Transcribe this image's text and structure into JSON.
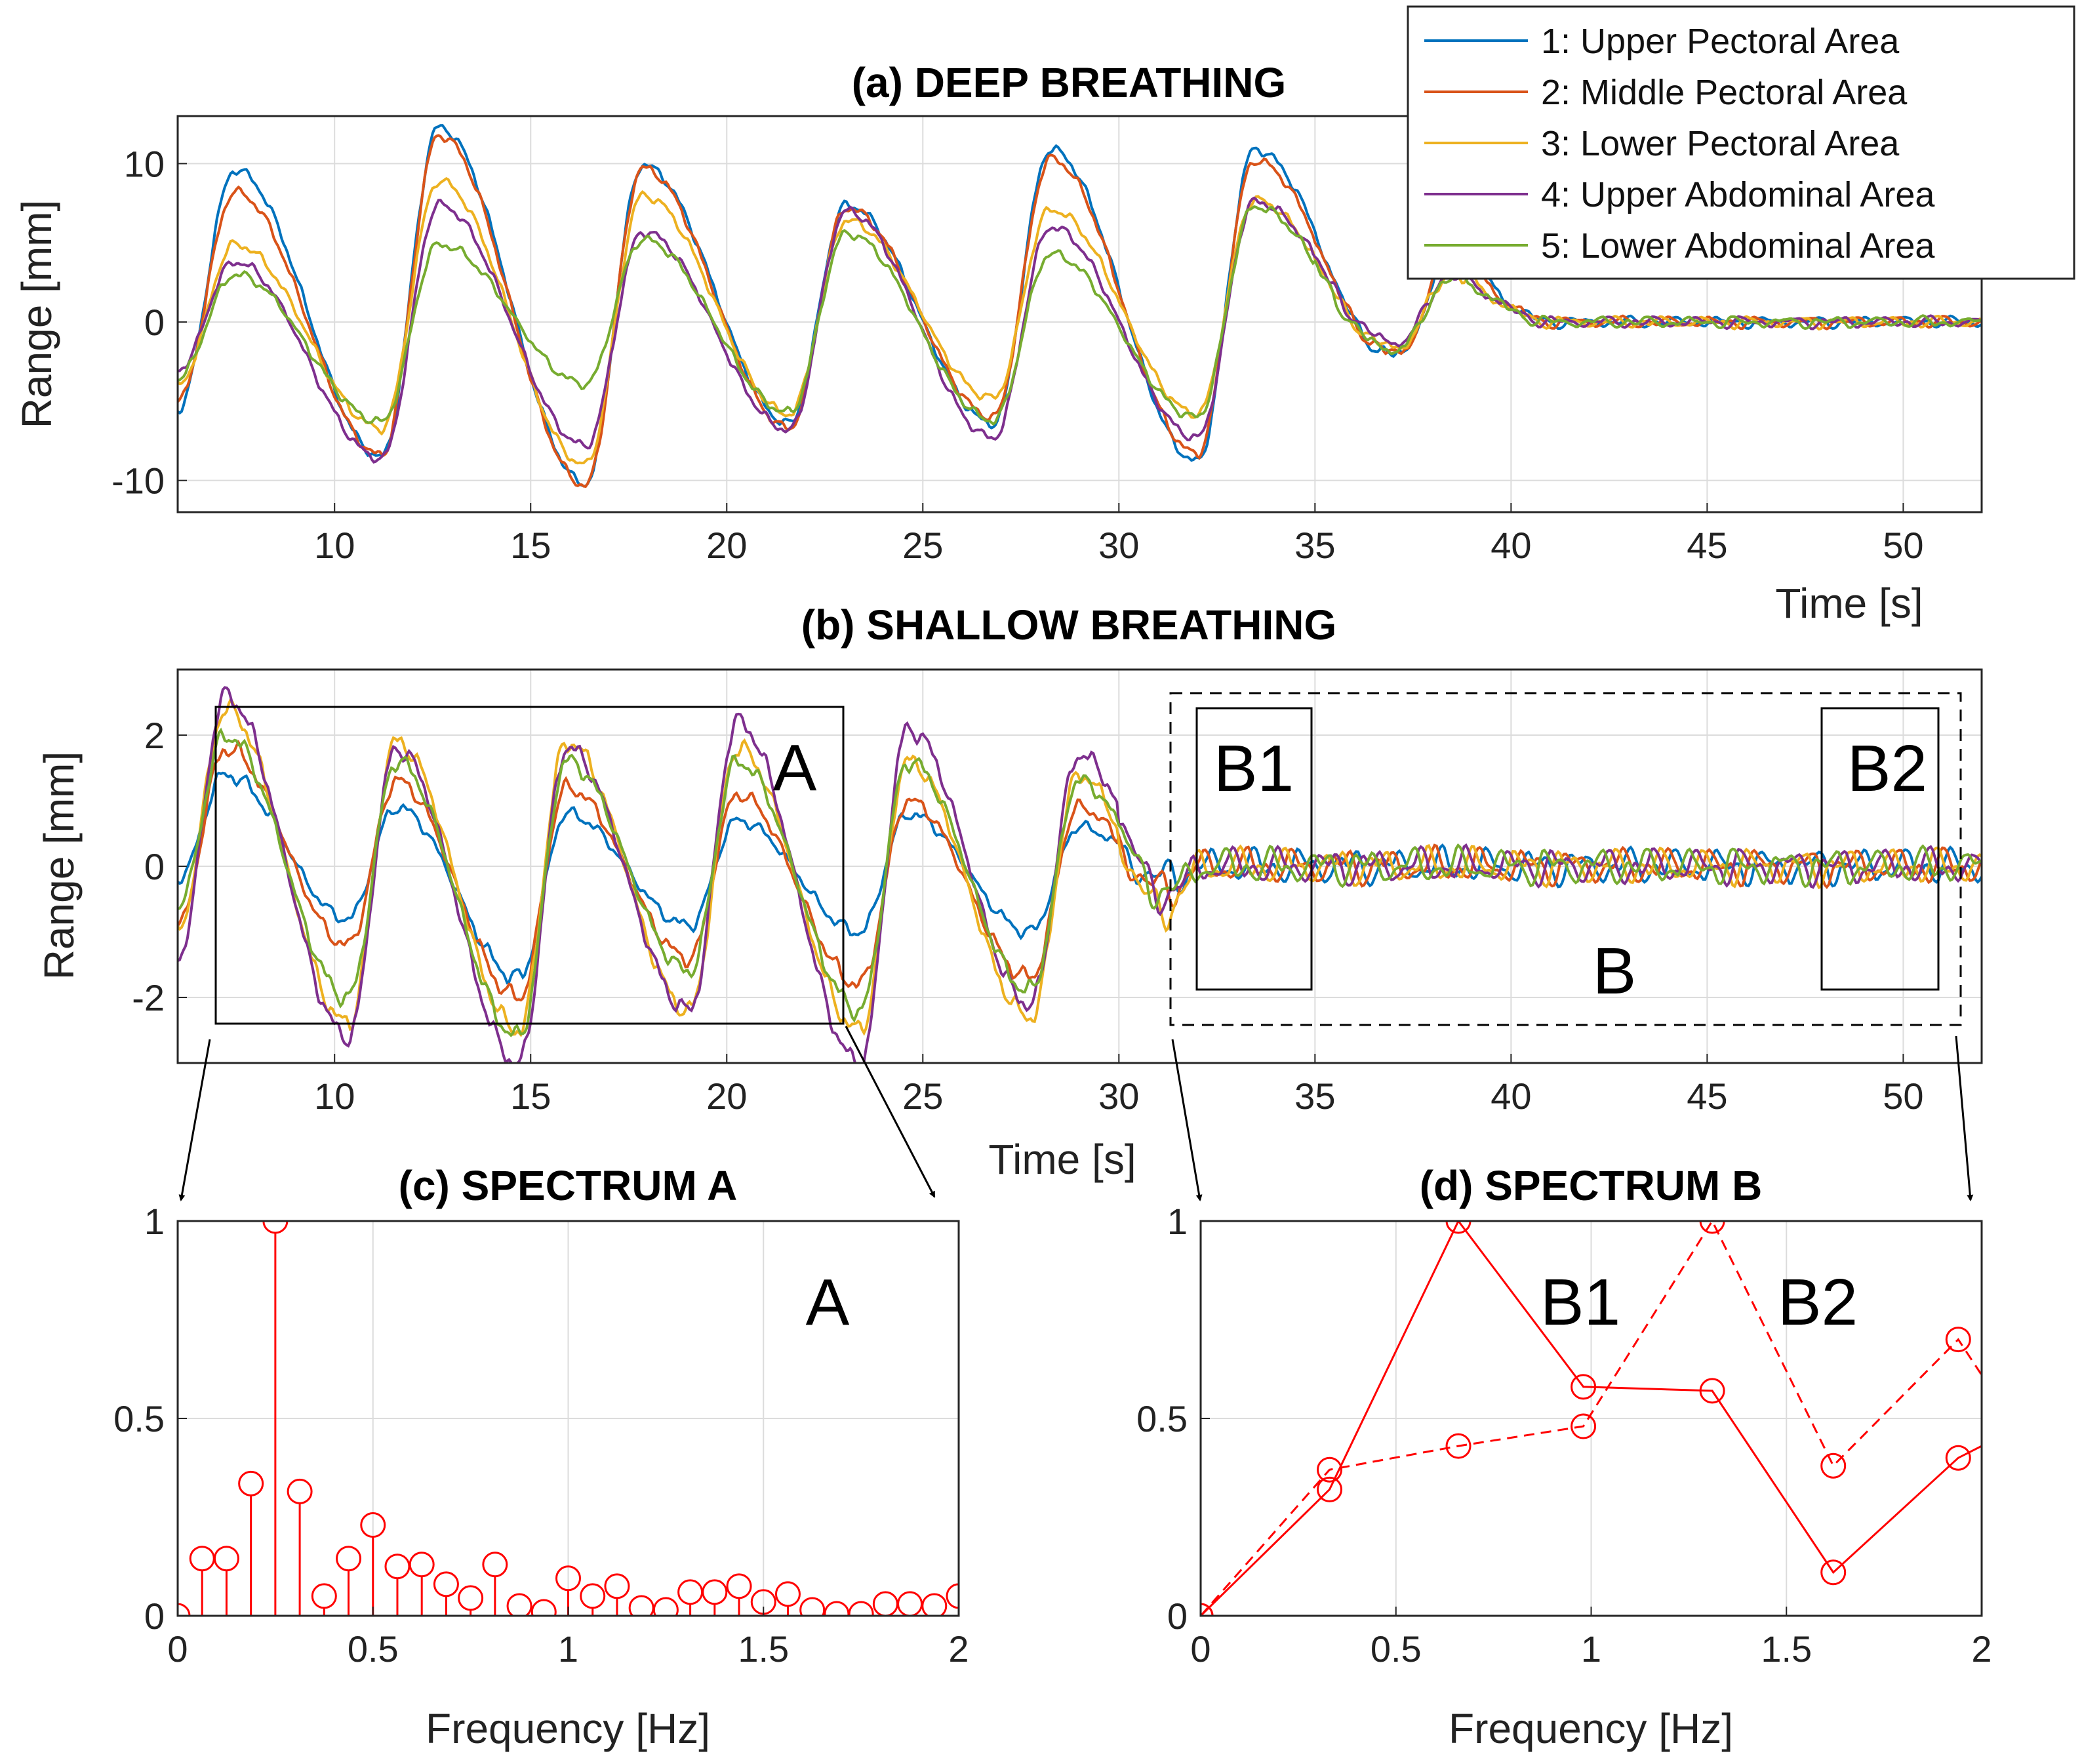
{
  "series_colors": [
    "#0072BD",
    "#D95319",
    "#EDB120",
    "#7E2F8E",
    "#77AC30"
  ],
  "stem_color": "#FF0000",
  "legend": {
    "entries": [
      "1: Upper Pectoral Area",
      "2: Middle Pectoral Area",
      "3: Lower Pectoral Area",
      "4: Upper Abdominal Area",
      "5: Lower Abdominal Area"
    ]
  },
  "chart_data": [
    {
      "id": "deep",
      "type": "line",
      "title": "(a) DEEP BREATHING",
      "xlabel": "Time [s]",
      "ylabel": "Range [mm]",
      "xlim": [
        6,
        52
      ],
      "ylim": [
        -12,
        13
      ],
      "xticks": [
        10,
        15,
        20,
        25,
        30,
        35,
        40,
        45,
        50
      ],
      "yticks": [
        -10,
        0,
        10
      ],
      "phase": {
        "t0": 6,
        "period": 5.2,
        "fade_start": 35,
        "fade_end": 41
      },
      "series": [
        {
          "name": "1: Upper Pectoral Area",
          "peaks": [
            9.6,
            12.3,
            9.9,
            7.4,
            10.9,
            10.9
          ],
          "troughs": [
            -5.5,
            -8.5,
            -10.2,
            -6.4,
            -6.4,
            -8.8,
            -3.2
          ]
        },
        {
          "name": "2: Middle Pectoral Area",
          "peaks": [
            8.2,
            11.8,
            9.7,
            7.2,
            10.3,
            10.2
          ],
          "troughs": [
            -5.0,
            -8.4,
            -10.3,
            -6.7,
            -6.0,
            -8.3,
            -3.0
          ]
        },
        {
          "name": "3: Lower Pectoral Area",
          "peaks": [
            4.9,
            8.9,
            8.0,
            6.4,
            7.1,
            7.7
          ],
          "troughs": [
            -4.0,
            -6.7,
            -9.0,
            -5.8,
            -4.8,
            -5.8,
            -2.4
          ]
        },
        {
          "name": "4: Upper Abdominal Area",
          "peaks": [
            3.8,
            7.4,
            5.7,
            7.0,
            6.0,
            7.6
          ],
          "troughs": [
            -3.0,
            -8.6,
            -7.8,
            -6.8,
            -7.3,
            -7.3,
            -1.9
          ]
        },
        {
          "name": "5: Lower Abdominal Area",
          "peaks": [
            3.0,
            4.9,
            5.2,
            5.6,
            4.3,
            7.3
          ],
          "troughs": [
            -3.5,
            -6.3,
            -3.9,
            -5.7,
            -6.2,
            -6.0,
            -2.6
          ]
        }
      ]
    },
    {
      "id": "shallow",
      "type": "line",
      "title": "(b) SHALLOW BREATHING",
      "xlabel": "Time [s]",
      "ylabel": "Range [mm]",
      "xlim": [
        6,
        52
      ],
      "ylim": [
        -3,
        3
      ],
      "xticks": [
        10,
        15,
        20,
        25,
        30,
        35,
        40,
        45,
        50
      ],
      "yticks": [
        -2,
        0,
        2
      ],
      "phase": {
        "t0": 6,
        "period": 4.35,
        "fade_start": 30,
        "fade_end": 32
      },
      "series": [
        {
          "name": "1: Upper Pectoral Area",
          "peaks": [
            1.4,
            0.9,
            0.8,
            0.7,
            0.8,
            0.6
          ],
          "troughs": [
            -0.2,
            -0.8,
            -1.7,
            -0.9,
            -1.0,
            -1.0,
            -0.7
          ]
        },
        {
          "name": "2: Middle Pectoral Area",
          "peaks": [
            1.8,
            1.3,
            1.2,
            1.1,
            1.0,
            0.9
          ],
          "troughs": [
            -0.9,
            -1.2,
            -2.0,
            -1.4,
            -1.8,
            -1.7,
            -1.3
          ]
        },
        {
          "name": "3: Lower Pectoral Area",
          "peaks": [
            2.4,
            1.9,
            1.9,
            1.8,
            1.6,
            1.4
          ],
          "troughs": [
            -1.0,
            -2.4,
            -2.5,
            -2.2,
            -2.5,
            -2.3,
            -2.3
          ]
        },
        {
          "name": "4: Upper Abdominal Area",
          "peaks": [
            2.6,
            1.8,
            1.8,
            2.2,
            2.1,
            1.7
          ],
          "troughs": [
            -1.4,
            -2.6,
            -3.0,
            -2.2,
            -3.0,
            -2.1,
            -1.7
          ]
        },
        {
          "name": "5: Lower Abdominal Area",
          "peaks": [
            2.0,
            1.6,
            1.6,
            1.6,
            1.6,
            1.3
          ],
          "troughs": [
            -0.6,
            -2.0,
            -2.6,
            -1.6,
            -2.2,
            -1.9,
            -1.5
          ]
        }
      ]
    },
    {
      "id": "specA",
      "type": "stem",
      "title": "(c) SPECTRUM A",
      "xlabel": "Frequency [Hz]",
      "xlim": [
        0,
        2
      ],
      "ylim": [
        0,
        1
      ],
      "xticks": [
        0,
        0.5,
        1,
        1.5,
        2
      ],
      "xtick_labels": [
        "0",
        "0.5",
        "1",
        "1.5",
        "2"
      ],
      "yticks": [
        0,
        0.5,
        1
      ],
      "ytick_labels": [
        "0",
        "0.5",
        "1"
      ],
      "x": [
        0,
        0.0625,
        0.125,
        0.1875,
        0.25,
        0.3125,
        0.375,
        0.4375,
        0.5,
        0.5625,
        0.625,
        0.6875,
        0.75,
        0.8125,
        0.875,
        0.9375,
        1.0,
        1.0625,
        1.125,
        1.1875,
        1.25,
        1.3125,
        1.375,
        1.4375,
        1.5,
        1.5625,
        1.625,
        1.6875,
        1.75,
        1.8125,
        1.875,
        1.9375,
        2.0
      ],
      "values": [
        0,
        0.145,
        0.145,
        0.335,
        1.0,
        0.315,
        0.05,
        0.145,
        0.23,
        0.125,
        0.13,
        0.08,
        0.045,
        0.13,
        0.025,
        0.01,
        0.095,
        0.05,
        0.075,
        0.02,
        0.015,
        0.06,
        0.06,
        0.075,
        0.035,
        0.055,
        0.015,
        0.005,
        0.005,
        0.03,
        0.03,
        0.025,
        0.05
      ]
    },
    {
      "id": "specB",
      "type": "line",
      "title": "(d) SPECTRUM B",
      "xlabel": "Frequency [Hz]",
      "xlim": [
        0,
        2
      ],
      "ylim": [
        0,
        1
      ],
      "xticks": [
        0,
        0.5,
        1,
        1.5,
        2
      ],
      "xtick_labels": [
        "0",
        "0.5",
        "1",
        "1.5",
        "2"
      ],
      "yticks": [
        0,
        0.5,
        1
      ],
      "ytick_labels": [
        "0",
        "0.5",
        "1"
      ],
      "series": [
        {
          "name": "B1",
          "style": "solid",
          "x": [
            0,
            0.33,
            0.66,
            0.98,
            1.31,
            1.62,
            1.94,
            2.0
          ],
          "values": [
            0,
            0.32,
            1.0,
            0.58,
            0.57,
            0.11,
            0.4,
            0.43
          ],
          "markers": 7
        },
        {
          "name": "B2",
          "style": "dashed",
          "x": [
            0,
            0.33,
            0.66,
            0.98,
            1.31,
            1.62,
            1.94,
            2.0
          ],
          "values": [
            0,
            0.37,
            0.43,
            0.48,
            1.0,
            0.38,
            0.7,
            0.61
          ],
          "markers": 7
        }
      ]
    }
  ],
  "annotations": {
    "region_a": "A",
    "region_b": "B",
    "region_b1": "B1",
    "region_b2": "B2",
    "spec_a_label": "A",
    "spec_b1_label": "B1",
    "spec_b2_label": "B2"
  }
}
